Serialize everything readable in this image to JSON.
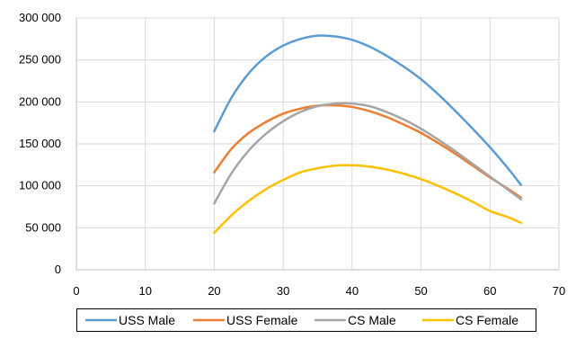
{
  "chart_data": {
    "type": "line",
    "title": "",
    "xlabel": "",
    "ylabel": "",
    "xlim": [
      0,
      70
    ],
    "ylim": [
      0,
      300000
    ],
    "x_ticks": [
      0,
      10,
      20,
      30,
      40,
      50,
      60,
      70
    ],
    "x_tick_labels": [
      "0",
      "10",
      "20",
      "30",
      "40",
      "50",
      "60",
      "70"
    ],
    "y_ticks": [
      0,
      50000,
      100000,
      150000,
      200000,
      250000,
      300000
    ],
    "y_tick_labels": [
      "0",
      "50 000",
      "100 000",
      "150 000",
      "200 000",
      "250 000",
      "300 000"
    ],
    "grid": true,
    "legend_position": "bottom",
    "series": [
      {
        "name": "USS Male",
        "color": "#5b9bd5",
        "x": [
          20,
          22.5,
          25,
          27.5,
          30,
          32.5,
          35,
          37.5,
          40,
          42.5,
          45,
          47.5,
          50,
          52.5,
          55,
          57.5,
          60,
          62.5,
          64.5
        ],
        "y": [
          165000,
          205000,
          234000,
          254000,
          267000,
          275000,
          279000,
          278000,
          274000,
          266000,
          255000,
          242000,
          227000,
          209000,
          189000,
          168000,
          146000,
          122000,
          101000
        ]
      },
      {
        "name": "USS Female",
        "color": "#ed7d31",
        "x": [
          20,
          22.5,
          25,
          27.5,
          30,
          32.5,
          35,
          37.5,
          40,
          42.5,
          45,
          47.5,
          50,
          52.5,
          55,
          57.5,
          60,
          62.5,
          64.5
        ],
        "y": [
          116000,
          144000,
          163000,
          176000,
          186000,
          192000,
          195500,
          196000,
          194000,
          189000,
          182000,
          173000,
          163000,
          151000,
          138000,
          124000,
          110000,
          97000,
          86000
        ]
      },
      {
        "name": "CS Male",
        "color": "#a5a5a5",
        "x": [
          20,
          22.5,
          25,
          27.5,
          30,
          32.5,
          35,
          37.5,
          40,
          42.5,
          45,
          47.5,
          50,
          52.5,
          55,
          57.5,
          60,
          62.5,
          64.5
        ],
        "y": [
          79000,
          115000,
          142000,
          162000,
          177000,
          188000,
          195000,
          198000,
          198000,
          195000,
          188000,
          179000,
          168000,
          155000,
          141000,
          126000,
          111000,
          96000,
          84000
        ]
      },
      {
        "name": "CS Female",
        "color": "#ffc000",
        "x": [
          20,
          22.5,
          25,
          27.5,
          30,
          32.5,
          35,
          37.5,
          40,
          42.5,
          45,
          47.5,
          50,
          52.5,
          55,
          57.5,
          60,
          62.5,
          64.5
        ],
        "y": [
          44000,
          65000,
          82000,
          96000,
          107000,
          116000,
          121000,
          124000,
          124500,
          123000,
          119500,
          114500,
          108000,
          100000,
          91000,
          81000,
          70000,
          63000,
          56000
        ]
      }
    ]
  }
}
